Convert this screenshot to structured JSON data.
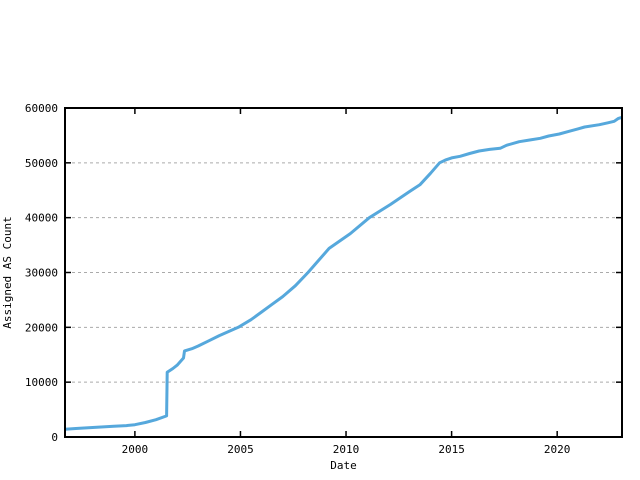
{
  "chart_data": {
    "type": "line",
    "title": "",
    "xlabel": "Date",
    "ylabel": "Assigned AS Count",
    "xlim": [
      1996.69,
      2023.07
    ],
    "ylim": [
      0,
      60000
    ],
    "x_ticks": [
      2000,
      2005,
      2010,
      2015,
      2020
    ],
    "y_ticks": [
      0,
      10000,
      20000,
      30000,
      40000,
      50000,
      60000
    ],
    "grid": "horizontal dashed gridlines at each y tick, no vertical gridlines",
    "legend_position": "none",
    "series": [
      {
        "name": "Assigned AS Count",
        "color": "#56a8dc",
        "points": [
          [
            1996.69,
            1400
          ],
          [
            1997.2,
            1550
          ],
          [
            1997.8,
            1700
          ],
          [
            1998.4,
            1820
          ],
          [
            1999.0,
            1950
          ],
          [
            1999.6,
            2080
          ],
          [
            2000.0,
            2250
          ],
          [
            2000.5,
            2650
          ],
          [
            2001.0,
            3150
          ],
          [
            2001.5,
            3850
          ],
          [
            2001.53,
            11800
          ],
          [
            2001.8,
            12500
          ],
          [
            2002.0,
            13100
          ],
          [
            2002.3,
            14400
          ],
          [
            2002.35,
            15700
          ],
          [
            2002.7,
            16100
          ],
          [
            2003.0,
            16600
          ],
          [
            2003.5,
            17550
          ],
          [
            2004.0,
            18500
          ],
          [
            2004.9,
            20000
          ],
          [
            2005.5,
            21400
          ],
          [
            2006.0,
            22800
          ],
          [
            2006.5,
            24200
          ],
          [
            2007.0,
            25600
          ],
          [
            2007.6,
            27600
          ],
          [
            2008.2,
            30000
          ],
          [
            2008.7,
            32200
          ],
          [
            2009.2,
            34400
          ],
          [
            2010.2,
            37100
          ],
          [
            2011.1,
            40000
          ],
          [
            2012.1,
            42400
          ],
          [
            2013.0,
            44750
          ],
          [
            2013.5,
            46000
          ],
          [
            2014.0,
            48100
          ],
          [
            2014.43,
            50000
          ],
          [
            2014.7,
            50500
          ],
          [
            2015.0,
            50900
          ],
          [
            2015.4,
            51200
          ],
          [
            2015.85,
            51700
          ],
          [
            2016.3,
            52150
          ],
          [
            2016.8,
            52450
          ],
          [
            2017.3,
            52650
          ],
          [
            2017.6,
            53200
          ],
          [
            2018.2,
            53860
          ],
          [
            2018.7,
            54160
          ],
          [
            2019.2,
            54470
          ],
          [
            2019.6,
            54890
          ],
          [
            2020.1,
            55260
          ],
          [
            2020.5,
            55680
          ],
          [
            2021.0,
            56200
          ],
          [
            2021.3,
            56540
          ],
          [
            2022.0,
            56960
          ],
          [
            2022.4,
            57300
          ],
          [
            2022.7,
            57570
          ],
          [
            2022.9,
            58100
          ],
          [
            2023.07,
            58300
          ]
        ]
      }
    ]
  },
  "colors": {
    "background": "#ffffff",
    "line": "#56a8dc",
    "border": "#000000",
    "grid": "#aaaaaa",
    "text": "#000000"
  }
}
